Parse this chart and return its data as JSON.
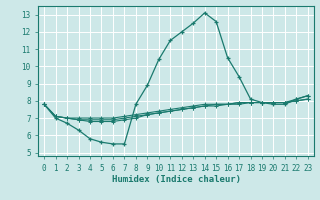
{
  "xlabel": "Humidex (Indice chaleur)",
  "bg_color": "#cde8e8",
  "line_color": "#1a7a6e",
  "grid_color": "#ffffff",
  "xlim": [
    -0.5,
    23.5
  ],
  "ylim": [
    4.8,
    13.5
  ],
  "xticks": [
    0,
    1,
    2,
    3,
    4,
    5,
    6,
    7,
    8,
    9,
    10,
    11,
    12,
    13,
    14,
    15,
    16,
    17,
    18,
    19,
    20,
    21,
    22,
    23
  ],
  "yticks": [
    5,
    6,
    7,
    8,
    9,
    10,
    11,
    12,
    13
  ],
  "series": [
    {
      "x": [
        0,
        1,
        2,
        3,
        4,
        5,
        6,
        7,
        8,
        9,
        10,
        11,
        12,
        13,
        14,
        15,
        16,
        17,
        18,
        19,
        20,
        21,
        22,
        23
      ],
      "y": [
        7.8,
        7.0,
        6.7,
        6.3,
        5.8,
        5.6,
        5.5,
        5.5,
        7.8,
        8.9,
        10.4,
        11.5,
        12.0,
        12.5,
        13.1,
        12.6,
        10.5,
        9.4,
        8.1,
        7.9,
        7.8,
        7.8,
        8.1,
        8.3
      ]
    },
    {
      "x": [
        0,
        1,
        2,
        3,
        4,
        5,
        6,
        7,
        8,
        9,
        10,
        11,
        12,
        13,
        14,
        15,
        16,
        17,
        18,
        19,
        20,
        21,
        22,
        23
      ],
      "y": [
        7.8,
        7.1,
        7.0,
        7.0,
        7.0,
        7.0,
        7.0,
        7.1,
        7.2,
        7.3,
        7.4,
        7.5,
        7.6,
        7.7,
        7.8,
        7.8,
        7.8,
        7.9,
        7.9,
        7.9,
        7.9,
        7.9,
        8.0,
        8.1
      ]
    },
    {
      "x": [
        0,
        1,
        2,
        3,
        4,
        5,
        6,
        7,
        8,
        9,
        10,
        11,
        12,
        13,
        14,
        15,
        16,
        17,
        18,
        19,
        20,
        21,
        22,
        23
      ],
      "y": [
        7.8,
        7.1,
        7.0,
        6.9,
        6.9,
        6.9,
        6.9,
        7.0,
        7.1,
        7.2,
        7.3,
        7.4,
        7.5,
        7.6,
        7.7,
        7.7,
        7.8,
        7.8,
        7.9,
        7.9,
        7.9,
        7.9,
        8.0,
        8.1
      ]
    },
    {
      "x": [
        0,
        1,
        2,
        3,
        4,
        5,
        6,
        7,
        8,
        9,
        10,
        11,
        12,
        13,
        14,
        15,
        16,
        17,
        18,
        19,
        20,
        21,
        22,
        23
      ],
      "y": [
        7.8,
        7.1,
        7.0,
        6.9,
        6.8,
        6.8,
        6.8,
        6.9,
        7.0,
        7.2,
        7.3,
        7.4,
        7.5,
        7.6,
        7.7,
        7.8,
        7.8,
        7.9,
        7.9,
        7.9,
        7.9,
        7.9,
        8.1,
        8.3
      ]
    }
  ]
}
